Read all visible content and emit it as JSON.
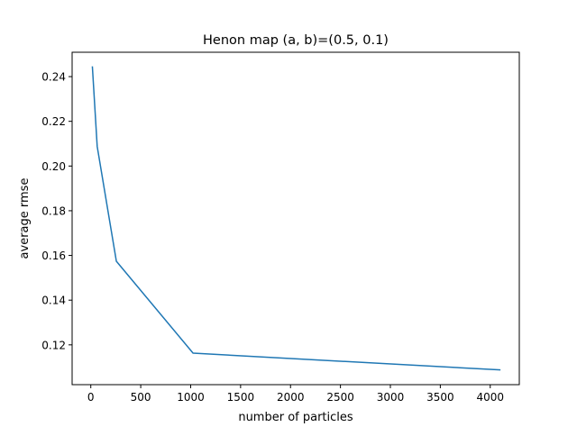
{
  "chart_data": {
    "type": "line",
    "title": "Henon map (a, b)=(0.5, 0.1)",
    "xlabel": "number of particles",
    "ylabel": "average rmse",
    "xlim": [
      -187,
      4291
    ],
    "ylim": [
      0.1022,
      0.2509
    ],
    "xticks": [
      0,
      500,
      1000,
      1500,
      2000,
      2500,
      3000,
      3500,
      4000
    ],
    "yticks": [
      0.12,
      0.14,
      0.16,
      0.18,
      0.2,
      0.22,
      0.24
    ],
    "ytick_labels": [
      "0.12",
      "0.14",
      "0.16",
      "0.18",
      "0.20",
      "0.22",
      "0.24"
    ],
    "grid": false,
    "series": [
      {
        "color": "#1f77b4",
        "x": [
          16,
          64,
          256,
          1024,
          4096
        ],
        "y": [
          0.2443,
          0.2088,
          0.1574,
          0.1163,
          0.1088
        ]
      }
    ]
  }
}
